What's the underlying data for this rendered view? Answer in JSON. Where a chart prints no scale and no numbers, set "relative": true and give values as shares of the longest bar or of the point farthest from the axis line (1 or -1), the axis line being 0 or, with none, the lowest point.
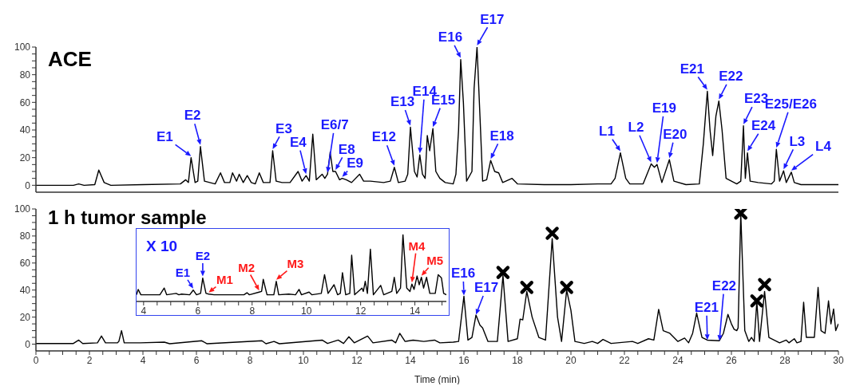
{
  "chart_data": [
    {
      "type": "line",
      "title": "ACE",
      "xlim": [
        0,
        30
      ],
      "ylim": [
        -5,
        100
      ],
      "tick_labels": "y",
      "marker": "none",
      "line_style": "solid",
      "yticks": [
        0,
        {
          "value": 5,
          "label": null
        },
        {
          "value": 10,
          "label": null
        },
        {
          "value": 15,
          "label": null
        },
        20,
        {
          "value": 25,
          "label": null
        },
        {
          "value": 30,
          "label": null
        },
        {
          "value": 35,
          "label": null
        },
        40,
        {
          "value": 45,
          "label": null
        },
        {
          "value": 50,
          "label": null
        },
        {
          "value": 55,
          "label": null
        },
        60,
        {
          "value": 65,
          "label": null
        },
        {
          "value": 70,
          "label": null
        },
        {
          "value": 75,
          "label": null
        },
        80,
        {
          "value": 85,
          "label": null
        },
        {
          "value": 90,
          "label": null
        },
        {
          "value": 95,
          "label": null
        },
        100
      ],
      "series": [
        {
          "color": "#000000",
          "x": [
            0,
            1.4,
            1.6,
            1.8,
            2.2,
            2.35,
            2.55,
            2.8,
            4,
            5.4,
            5.6,
            5.7,
            5.8,
            5.95,
            6.05,
            6.15,
            6.3,
            6.5,
            6.7,
            6.9,
            7.05,
            7.25,
            7.35,
            7.5,
            7.6,
            7.75,
            7.9,
            8.05,
            8.2,
            8.35,
            8.5,
            8.75,
            8.85,
            8.98,
            9.2,
            9.5,
            9.8,
            9.95,
            10.1,
            10.22,
            10.35,
            10.48,
            10.7,
            10.8,
            10.9,
            11.0,
            11.1,
            11.2,
            11.35,
            11.45,
            11.6,
            11.8,
            12.1,
            12.25,
            12.5,
            13.0,
            13.25,
            13.4,
            13.55,
            13.8,
            13.9,
            14.0,
            14.15,
            14.25,
            14.35,
            14.45,
            14.55,
            14.63,
            14.72,
            14.84,
            14.95,
            15.1,
            15.3,
            15.6,
            15.7,
            15.8,
            15.88,
            15.98,
            16.1,
            16.3,
            16.38,
            16.49,
            16.6,
            16.7,
            16.85,
            17.0,
            17.15,
            17.3,
            17.45,
            17.8,
            18.0,
            19,
            20,
            21,
            21.5,
            21.65,
            21.85,
            22.05,
            22.2,
            22.7,
            23.0,
            23.12,
            23.22,
            23.4,
            23.68,
            23.85,
            24.3,
            24.8,
            24.95,
            25.1,
            25.2,
            25.3,
            25.42,
            25.53,
            25.65,
            25.8,
            26.2,
            26.35,
            26.45,
            26.52,
            26.6,
            26.7,
            27.0,
            27.5,
            27.6,
            27.68,
            27.8,
            27.95,
            28.05,
            28.24,
            28.35,
            28.6,
            30
          ],
          "values": [
            0,
            0,
            1,
            0,
            0.5,
            11,
            2,
            0,
            0.5,
            1,
            4,
            2,
            20,
            2,
            3,
            28,
            3,
            2,
            1,
            9,
            2,
            2,
            9,
            3,
            8,
            2,
            7,
            2,
            1,
            9,
            2,
            2,
            25,
            3,
            2,
            2,
            10,
            3,
            7,
            3,
            37,
            4,
            8,
            5,
            8,
            24,
            10,
            10,
            4,
            5,
            4,
            2,
            8,
            3,
            3,
            2,
            3,
            13,
            2,
            3,
            8,
            42,
            10,
            6,
            22,
            8,
            5,
            36,
            25,
            41,
            10,
            5,
            2,
            1,
            8,
            40,
            91,
            60,
            3,
            10,
            70,
            100,
            50,
            3,
            4,
            18,
            10,
            9,
            2,
            5,
            1,
            0.5,
            0.5,
            1,
            1,
            5,
            23.5,
            5,
            1,
            1,
            15.5,
            13,
            15,
            2,
            18.5,
            3,
            0.5,
            1,
            30,
            68,
            40,
            21.5,
            50,
            61,
            40,
            5,
            1,
            3,
            43,
            5,
            23.5,
            3,
            2,
            1,
            3,
            26,
            3,
            10.5,
            2,
            9.5,
            2,
            0.5,
            0.5
          ]
        }
      ],
      "annotations": [
        {
          "text": "E1",
          "x": 5.8,
          "y": 20
        },
        {
          "text": "E2",
          "x": 6.15,
          "y": 28
        },
        {
          "text": "E3",
          "x": 8.85,
          "y": 25
        },
        {
          "text": "E4",
          "x": 10.1,
          "y": 7
        },
        {
          "text": "E6/7",
          "x": 10.9,
          "y": 8
        },
        {
          "text": "E8",
          "x": 11.2,
          "y": 10
        },
        {
          "text": "E9",
          "x": 11.45,
          "y": 5
        },
        {
          "text": "E12",
          "x": 13.4,
          "y": 13
        },
        {
          "text": "E13",
          "x": 14.0,
          "y": 42
        },
        {
          "text": "E14",
          "x": 14.35,
          "y": 22
        },
        {
          "text": "E15",
          "x": 14.84,
          "y": 41
        },
        {
          "text": "E16",
          "x": 15.88,
          "y": 91
        },
        {
          "text": "E17",
          "x": 16.49,
          "y": 100
        },
        {
          "text": "E18",
          "x": 17.0,
          "y": 18
        },
        {
          "text": "L1",
          "x": 21.85,
          "y": 23.5
        },
        {
          "text": "L2",
          "x": 23.0,
          "y": 15.5
        },
        {
          "text": "E19",
          "x": 23.22,
          "y": 15
        },
        {
          "text": "E20",
          "x": 23.68,
          "y": 18.5
        },
        {
          "text": "E21",
          "x": 25.1,
          "y": 68
        },
        {
          "text": "E22",
          "x": 25.53,
          "y": 61
        },
        {
          "text": "E23",
          "x": 26.45,
          "y": 43
        },
        {
          "text": "E24",
          "x": 26.6,
          "y": 23.5
        },
        {
          "text": "E25/E26",
          "x": 27.68,
          "y": 26
        },
        {
          "text": "L3",
          "x": 27.95,
          "y": 10.5
        },
        {
          "text": "L4",
          "x": 28.24,
          "y": 9.5
        }
      ]
    },
    {
      "type": "line",
      "title": "1 h tumor sample",
      "xlabel": "Time (min)",
      "xlim": [
        0,
        30
      ],
      "ylim": [
        -5,
        100
      ],
      "marker": "none",
      "line_style": "solid",
      "yticks": [
        0,
        {
          "value": 5,
          "label": null
        },
        {
          "value": 10,
          "label": null
        },
        {
          "value": 15,
          "label": null
        },
        20,
        {
          "value": 25,
          "label": null
        },
        {
          "value": 30,
          "label": null
        },
        {
          "value": 35,
          "label": null
        },
        40,
        {
          "value": 45,
          "label": null
        },
        {
          "value": 50,
          "label": null
        },
        {
          "value": 55,
          "label": null
        },
        60,
        {
          "value": 65,
          "label": null
        },
        {
          "value": 70,
          "label": null
        },
        {
          "value": 75,
          "label": null
        },
        80,
        {
          "value": 85,
          "label": null
        },
        {
          "value": 90,
          "label": null
        },
        {
          "value": 95,
          "label": null
        },
        100
      ],
      "xticks": [
        0,
        {
          "value": 0.5,
          "label": null
        },
        {
          "value": 1,
          "label": null
        },
        {
          "value": 1.5,
          "label": null
        },
        2,
        {
          "value": 2.5,
          "label": null
        },
        {
          "value": 3,
          "label": null
        },
        {
          "value": 3.5,
          "label": null
        },
        4,
        {
          "value": 4.5,
          "label": null
        },
        {
          "value": 5,
          "label": null
        },
        {
          "value": 5.5,
          "label": null
        },
        6,
        {
          "value": 6.5,
          "label": null
        },
        {
          "value": 7,
          "label": null
        },
        {
          "value": 7.5,
          "label": null
        },
        8,
        {
          "value": 8.5,
          "label": null
        },
        {
          "value": 9,
          "label": null
        },
        {
          "value": 9.5,
          "label": null
        },
        10,
        {
          "value": 10.5,
          "label": null
        },
        {
          "value": 11,
          "label": null
        },
        {
          "value": 11.5,
          "label": null
        },
        12,
        {
          "value": 12.5,
          "label": null
        },
        {
          "value": 13,
          "label": null
        },
        {
          "value": 13.5,
          "label": null
        },
        14,
        {
          "value": 14.5,
          "label": null
        },
        {
          "value": 15,
          "label": null
        },
        {
          "value": 15.5,
          "label": null
        },
        16,
        {
          "value": 16.5,
          "label": null
        },
        {
          "value": 17,
          "label": null
        },
        {
          "value": 17.5,
          "label": null
        },
        18,
        {
          "value": 18.5,
          "label": null
        },
        {
          "value": 19,
          "label": null
        },
        {
          "value": 19.5,
          "label": null
        },
        20,
        {
          "value": 20.5,
          "label": null
        },
        {
          "value": 21,
          "label": null
        },
        {
          "value": 21.5,
          "label": null
        },
        22,
        {
          "value": 22.5,
          "label": null
        },
        {
          "value": 23,
          "label": null
        },
        {
          "value": 23.5,
          "label": null
        },
        24,
        {
          "value": 24.5,
          "label": null
        },
        {
          "value": 25,
          "label": null
        },
        {
          "value": 25.5,
          "label": null
        },
        26,
        {
          "value": 26.5,
          "label": null
        },
        {
          "value": 27,
          "label": null
        },
        {
          "value": 27.5,
          "label": null
        },
        28,
        {
          "value": 28.5,
          "label": null
        },
        {
          "value": 29,
          "label": null
        },
        {
          "value": 29.5,
          "label": null
        },
        30
      ],
      "series": [
        {
          "color": "#000000",
          "x": [
            0,
            1.4,
            1.6,
            1.75,
            2.3,
            2.45,
            2.6,
            3.05,
            3.1,
            3.2,
            3.3,
            3.9,
            4.8,
            5,
            6.2,
            6.4,
            8.45,
            8.6,
            8.9,
            9.1,
            10.7,
            10.9,
            11.3,
            11.5,
            11.7,
            11.9,
            12.4,
            12.6,
            13.3,
            13.45,
            13.6,
            13.8,
            14.1,
            14.5,
            14.9,
            15.1,
            15.6,
            15.8,
            16.0,
            16.15,
            16.3,
            16.45,
            16.6,
            16.7,
            16.9,
            17.25,
            17.46,
            17.65,
            18.0,
            18.1,
            18.2,
            18.35,
            18.55,
            18.8,
            19.05,
            19.3,
            19.5,
            19.65,
            19.84,
            20.0,
            20.15,
            20.5,
            20.8,
            21.0,
            21.2,
            21.5,
            22.3,
            22.5,
            22.9,
            23.1,
            23.28,
            23.45,
            23.7,
            24.0,
            24.25,
            24.4,
            24.55,
            24.7,
            24.9,
            25.1,
            25.55,
            25.7,
            25.87,
            26.0,
            26.1,
            26.2,
            26.25,
            26.35,
            26.5,
            26.65,
            26.75,
            26.85,
            26.95,
            27.05,
            27.24,
            27.4,
            27.8,
            28.05,
            28.15,
            28.35,
            28.45,
            28.6,
            28.7,
            28.8,
            29.1,
            29.24,
            29.35,
            29.5,
            29.63,
            29.72,
            29.82,
            29.9,
            30
          ],
          "values": [
            0.5,
            0.5,
            3,
            0.5,
            1,
            6,
            1,
            1,
            2,
            10,
            1,
            1,
            1.5,
            0.3,
            2.5,
            0.3,
            2.5,
            0.3,
            2,
            0.3,
            3,
            0.5,
            3,
            0.5,
            5.5,
            1,
            6,
            1,
            3,
            1,
            8,
            2,
            3,
            2,
            3,
            1,
            1.5,
            2,
            35.5,
            3,
            5,
            21.5,
            14,
            12,
            2,
            2,
            50.7,
            2,
            4,
            18.5,
            18,
            39,
            20,
            5,
            3,
            78,
            20,
            2,
            40,
            25,
            2,
            0.5,
            2,
            0.5,
            3.5,
            0.5,
            2,
            0.5,
            4,
            3,
            25.7,
            10,
            8,
            2,
            4.5,
            1,
            8,
            23,
            5,
            3,
            2.5,
            8,
            22,
            15,
            11,
            10,
            12,
            96.5,
            10,
            2,
            5,
            2,
            31.5,
            2,
            39,
            5,
            1,
            3,
            1,
            4,
            1,
            2,
            31,
            5,
            5,
            42,
            10,
            8,
            32,
            15,
            26,
            10,
            15
          ]
        },
        {
          "type": "scatter",
          "marker": "cross",
          "color": "#000000",
          "x": [
            17.46,
            18.35,
            19.3,
            19.84,
            26.35,
            26.95,
            27.24
          ],
          "values": [
            53,
            42,
            82,
            42,
            97,
            32,
            44
          ]
        }
      ],
      "annotations": [
        {
          "text": "E16",
          "x": 16.0,
          "y": 35.5
        },
        {
          "text": "E17",
          "x": 16.45,
          "y": 21.5
        },
        {
          "text": "E21",
          "x": 25.1,
          "y": 3
        },
        {
          "text": "E22",
          "x": 25.55,
          "y": 2.5
        }
      ]
    },
    {
      "type": "line",
      "title": "X 10",
      "relative": true,
      "xlim": [
        3.74,
        15.16
      ],
      "tick_labels": "x",
      "marker": "none",
      "line_style": "solid",
      "xticks": [
        4,
        {
          "value": 4.5,
          "label": null
        },
        {
          "value": 5,
          "label": null
        },
        {
          "value": 5.5,
          "label": null
        },
        6,
        {
          "value": 6.5,
          "label": null
        },
        {
          "value": 7,
          "label": null
        },
        {
          "value": 7.5,
          "label": null
        },
        8,
        {
          "value": 8.5,
          "label": null
        },
        {
          "value": 9,
          "label": null
        },
        {
          "value": 9.5,
          "label": null
        },
        10,
        {
          "value": 10.5,
          "label": null
        },
        {
          "value": 11,
          "label": null
        },
        {
          "value": 11.5,
          "label": null
        },
        12,
        {
          "value": 12.5,
          "label": null
        },
        {
          "value": 13,
          "label": null
        },
        {
          "value": 13.5,
          "label": null
        },
        14,
        {
          "value": 14.5,
          "label": null
        },
        {
          "value": 15,
          "label": null
        }
      ],
      "series": [
        {
          "color": "#000000",
          "x": [
            3.74,
            3.8,
            3.9,
            4.6,
            4.76,
            4.85,
            5.2,
            5.3,
            5.4,
            5.7,
            5.83,
            5.95,
            6.1,
            6.18,
            6.3,
            6.4,
            6.6,
            7.7,
            7.81,
            7.9,
            8.26,
            8.35,
            8.41,
            8.55,
            8.8,
            8.89,
            8.98,
            9.35,
            9.6,
            9.73,
            9.82,
            10.1,
            10.2,
            10.55,
            10.67,
            10.8,
            11.02,
            11.15,
            11.25,
            11.33,
            11.45,
            11.6,
            11.67,
            11.78,
            12.05,
            12.1,
            12.17,
            12.25,
            12.36,
            12.47,
            12.74,
            12.85,
            13.15,
            13.24,
            13.33,
            13.47,
            13.56,
            13.7,
            13.82,
            13.89,
            13.97,
            14.08,
            14.16,
            14.24,
            14.32,
            14.43,
            14.55,
            14.75,
            14.86,
            14.98,
            15.06,
            15.16
          ],
          "values": [
            0.1,
            0.18,
            0.1,
            0.1,
            0.2,
            0.1,
            0.12,
            0.1,
            0.11,
            0.1,
            0.17,
            0.1,
            0.12,
            0.35,
            0.12,
            0.11,
            0.1,
            0.1,
            0.13,
            0.1,
            0.14,
            0.15,
            0.33,
            0.1,
            0.1,
            0.3,
            0.1,
            0.11,
            0.1,
            0.18,
            0.1,
            0.14,
            0.1,
            0.12,
            0.4,
            0.12,
            0.25,
            0.1,
            0.12,
            0.43,
            0.1,
            0.12,
            0.69,
            0.1,
            0.2,
            0.15,
            0.3,
            0.12,
            0.78,
            0.1,
            0.24,
            0.1,
            0.15,
            0.36,
            0.12,
            0.2,
            1,
            0.2,
            0.15,
            0.26,
            0.18,
            0.38,
            0.25,
            0.36,
            0.2,
            0.36,
            0.12,
            0.12,
            0.4,
            0.35,
            0.12,
            0.1
          ]
        }
      ],
      "annotations": [
        {
          "text": "E1",
          "x": 5.83,
          "y": 0.17
        },
        {
          "text": "E2",
          "x": 6.18,
          "y": 0.35
        },
        {
          "text": "M1",
          "x": 6.4,
          "y": 0.11
        },
        {
          "text": "M2",
          "x": 8.26,
          "y": 0.14
        },
        {
          "text": "M3",
          "x": 8.89,
          "y": 0.3
        },
        {
          "text": "M4",
          "x": 13.89,
          "y": 0.26
        },
        {
          "text": "M5",
          "x": 14.24,
          "y": 0.36
        }
      ]
    }
  ]
}
